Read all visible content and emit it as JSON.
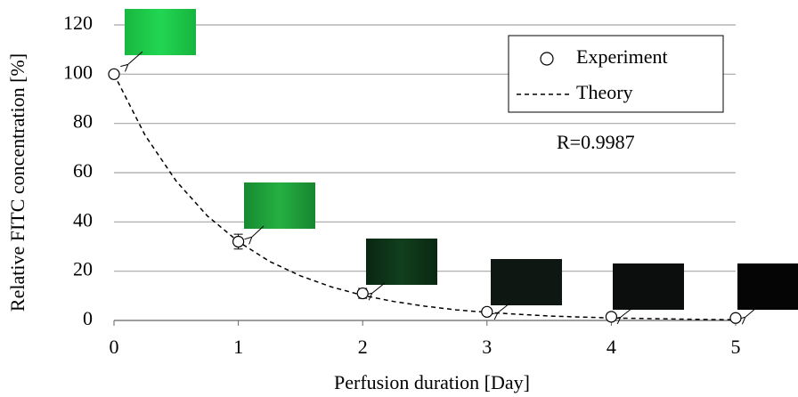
{
  "chart_data": {
    "type": "scatter",
    "x_label": "Perfusion duration [Day]",
    "y_label": "Relative FITC concentration [%]",
    "annotation": "R=0.9987",
    "xlim": [
      0,
      5
    ],
    "xticks": [
      0,
      1,
      2,
      3,
      4,
      5
    ],
    "ylim": [
      0,
      120
    ],
    "yticks": [
      0,
      20,
      40,
      60,
      80,
      100,
      120
    ],
    "grid": true,
    "legend": "upper right",
    "series": [
      {
        "name": "Experiment",
        "mode": "markers",
        "color": "#000000",
        "x": [
          0,
          1,
          2,
          3,
          4,
          5
        ],
        "values": [
          100,
          32,
          11,
          3.5,
          1.5,
          1
        ],
        "errors": [
          0.5,
          3,
          2,
          0.5,
          0.5,
          0.5
        ]
      },
      {
        "name": "Theory",
        "mode": "dashed-line",
        "color": "#000000",
        "x": [
          0,
          0.25,
          0.5,
          0.75,
          1,
          1.25,
          1.5,
          1.75,
          2,
          2.25,
          2.5,
          2.75,
          3,
          3.25,
          3.5,
          3.75,
          4,
          4.25,
          4.5,
          4.75,
          5
        ],
        "values": [
          100,
          75.2,
          56.6,
          42.5,
          32.0,
          24.0,
          18.1,
          13.6,
          10.2,
          7.7,
          5.8,
          4.3,
          3.3,
          2.5,
          1.8,
          1.4,
          1.0,
          0.8,
          0.6,
          0.4,
          0.3
        ]
      }
    ]
  }
}
